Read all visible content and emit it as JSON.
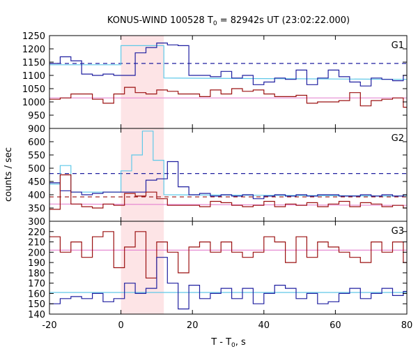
{
  "chart_data": {
    "type": "line",
    "title_prefix": "KONUS-WIND 100528 T",
    "title_sub": "0",
    "title_suffix": " = 82942s UT (23:02:22.000)",
    "xlabel_prefix": "T - T",
    "xlabel_sub": "0",
    "xlabel_suffix": ", s",
    "ylabel": "counts / sec",
    "xlim": [
      -20,
      80
    ],
    "xticks": [
      -20,
      0,
      20,
      40,
      60,
      80
    ],
    "highlight_x": [
      0,
      12
    ],
    "colors": {
      "blue": "#1f1fa0",
      "cyan": "#5fc8e8",
      "red": "#9b1010",
      "pink": "#e68ad2",
      "highlight": "#fde4e6"
    },
    "panels": [
      {
        "label": "G1",
        "ylim": [
          900,
          1250
        ],
        "yticks": [
          900,
          950,
          1000,
          1050,
          1100,
          1150,
          1200,
          1250
        ],
        "dashed_levels": [
          {
            "color": "blue",
            "y": 1145
          }
        ],
        "fits": [
          {
            "color": "cyan",
            "x": [
              -20,
              0,
              0,
              12,
              12,
              80
            ],
            "y": [
              1140,
              1140,
              1212,
              1212,
              1090,
              1085
            ]
          },
          {
            "color": "pink",
            "x": [
              -20,
              80
            ],
            "y": [
              1015,
              1015
            ]
          }
        ],
        "series": [
          {
            "color": "blue",
            "edges_start": -20,
            "bin": 3,
            "values": [
              1145,
              1170,
              1155,
              1105,
              1100,
              1105,
              1100,
              1100,
              1185,
              1205,
              1222,
              1215,
              1212,
              1100,
              1100,
              1095,
              1115,
              1090,
              1100,
              1065,
              1075,
              1090,
              1085,
              1120,
              1065,
              1090,
              1120,
              1095,
              1075,
              1060,
              1090,
              1085,
              1080,
              1100,
              1090
            ]
          },
          {
            "color": "red",
            "edges_start": -20,
            "bin": 3,
            "values": [
              1010,
              1015,
              1030,
              1030,
              1010,
              995,
              1030,
              1055,
              1035,
              1030,
              1045,
              1040,
              1030,
              1030,
              1020,
              1045,
              1030,
              1050,
              1040,
              1045,
              1030,
              1020,
              1020,
              1025,
              995,
              1000,
              1000,
              1005,
              1035,
              985,
              1005,
              1010,
              1015,
              980,
              990
            ]
          }
        ]
      },
      {
        "label": "G2",
        "ylim": [
          300,
          650
        ],
        "yticks": [
          300,
          350,
          400,
          450,
          500,
          550,
          600
        ],
        "dashed_levels": [
          {
            "color": "blue",
            "y": 480
          },
          {
            "color": "red",
            "y": 392
          }
        ],
        "fits": [
          {
            "color": "cyan",
            "x": [
              -20,
              -17,
              -17,
              -14,
              -14,
              0,
              0,
              3,
              3,
              6,
              6,
              9,
              9,
              12,
              12,
              80
            ],
            "y": [
              440,
              440,
              510,
              510,
              410,
              410,
              490,
              490,
              550,
              550,
              640,
              640,
              530,
              530,
              400,
              395
            ]
          },
          {
            "color": "pink",
            "x": [
              -20,
              80
            ],
            "y": [
              365,
              360
            ]
          }
        ],
        "series": [
          {
            "color": "blue",
            "edges_start": -20,
            "bin": 3,
            "values": [
              445,
              415,
              410,
              400,
              405,
              410,
              410,
              410,
              410,
              455,
              460,
              525,
              430,
              400,
              405,
              395,
              400,
              395,
              400,
              385,
              395,
              400,
              395,
              400,
              395,
              400,
              400,
              395,
              395,
              400,
              395,
              400,
              395,
              400,
              395
            ]
          },
          {
            "color": "red",
            "edges_start": -20,
            "bin": 3,
            "values": [
              345,
              475,
              365,
              355,
              350,
              365,
              360,
              405,
              395,
              410,
              385,
              360,
              360,
              360,
              355,
              375,
              370,
              360,
              355,
              360,
              375,
              355,
              365,
              360,
              370,
              355,
              365,
              375,
              355,
              370,
              365,
              355,
              360,
              350,
              370
            ]
          }
        ]
      },
      {
        "label": "G3",
        "ylim": [
          140,
          230
        ],
        "yticks": [
          140,
          150,
          160,
          170,
          180,
          190,
          200,
          210,
          220
        ],
        "dashed_levels": [],
        "fits": [
          {
            "color": "pink",
            "x": [
              -20,
              80
            ],
            "y": [
              202,
              202
            ]
          },
          {
            "color": "cyan",
            "x": [
              -20,
              80
            ],
            "y": [
              161,
              161
            ]
          }
        ],
        "series": [
          {
            "color": "red",
            "edges_start": -20,
            "bin": 3,
            "values": [
              215,
              200,
              210,
              195,
              215,
              220,
              185,
              205,
              220,
              175,
              210,
              200,
              180,
              205,
              210,
              200,
              210,
              200,
              195,
              200,
              215,
              210,
              190,
              215,
              195,
              210,
              205,
              200,
              195,
              190,
              210,
              200,
              210,
              190,
              210
            ]
          },
          {
            "color": "blue",
            "edges_start": -20,
            "bin": 3,
            "values": [
              150,
              155,
              157,
              155,
              160,
              152,
              155,
              170,
              160,
              165,
              195,
              170,
              145,
              168,
              155,
              160,
              165,
              155,
              165,
              150,
              160,
              168,
              165,
              155,
              160,
              150,
              152,
              160,
              165,
              155,
              160,
              165,
              158,
              162,
              160
            ]
          }
        ]
      }
    ]
  }
}
